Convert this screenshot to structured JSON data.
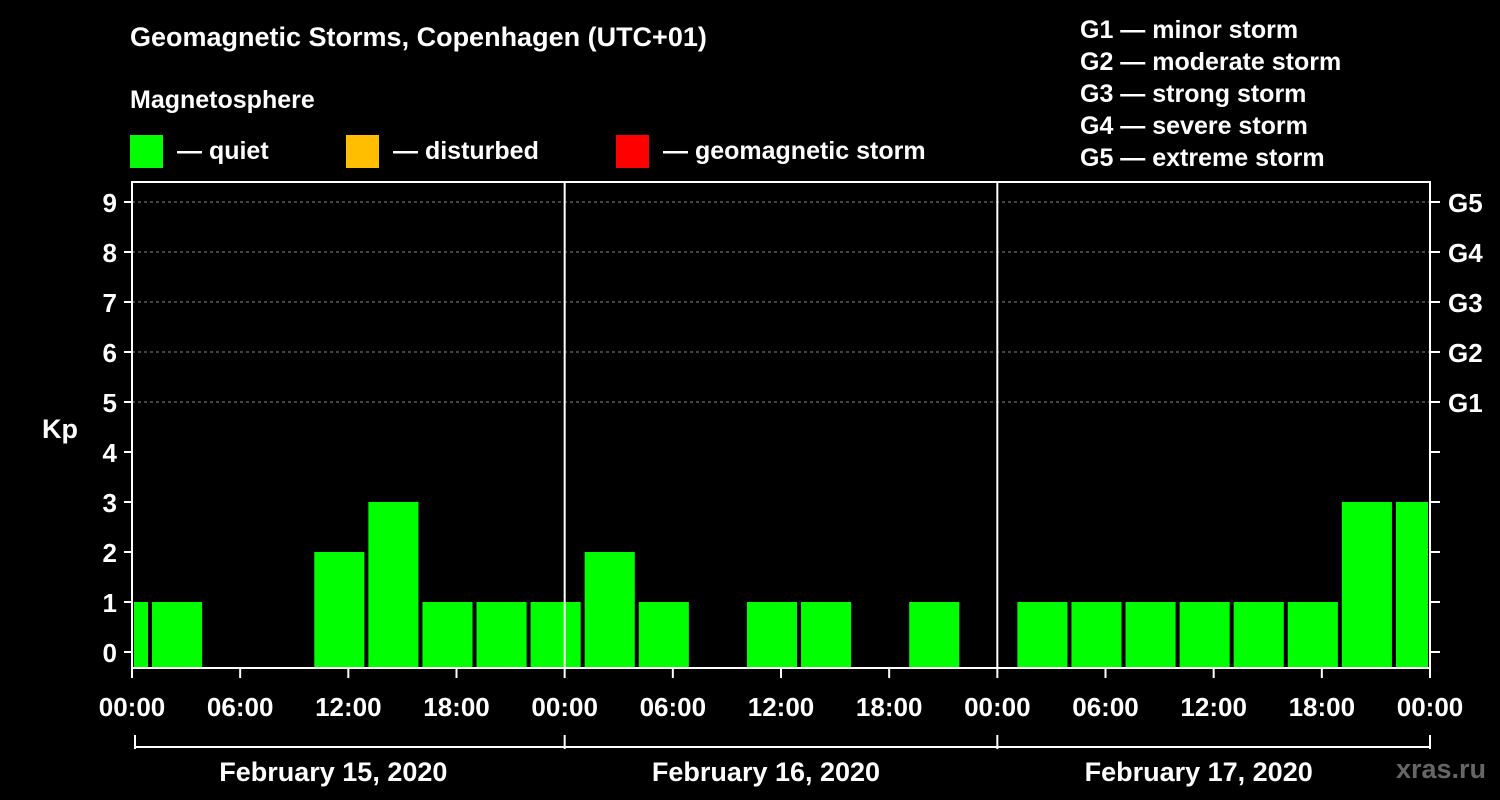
{
  "title": "Geomagnetic Storms, Copenhagen (UTC+01)",
  "magnetosphere_title": "Magnetosphere",
  "legend": [
    {
      "label": "— quiet",
      "color": "#00ff00"
    },
    {
      "label": "— disturbed",
      "color": "#ffbf00"
    },
    {
      "label": "— geomagnetic storm",
      "color": "#ff0000"
    }
  ],
  "g_scale": [
    "G1 — minor storm",
    "G2 — moderate storm",
    "G3 — strong storm",
    "G4 — severe storm",
    "G5 — extreme storm"
  ],
  "watermark": "xras.ru",
  "chart_data": {
    "type": "bar",
    "ylabel": "Kp",
    "ylim": [
      0,
      9
    ],
    "y_ticks": [
      "0",
      "1",
      "2",
      "3",
      "4",
      "5",
      "6",
      "7",
      "8",
      "9"
    ],
    "right_ticks": [
      {
        "kp": 5,
        "label": "G1"
      },
      {
        "kp": 6,
        "label": "G2"
      },
      {
        "kp": 7,
        "label": "G3"
      },
      {
        "kp": 8,
        "label": "G4"
      },
      {
        "kp": 9,
        "label": "G5"
      }
    ],
    "grid": true,
    "x_tick_labels": [
      "00:00",
      "06:00",
      "12:00",
      "18:00",
      "00:00",
      "06:00",
      "12:00",
      "18:00",
      "00:00",
      "06:00",
      "12:00",
      "18:00",
      "00:00"
    ],
    "dates": [
      "February 15, 2020",
      "February 16, 2020",
      "February 17, 2020"
    ],
    "bar_colors": {
      "quiet": "#00ff00"
    },
    "bars": [
      {
        "start_hour": 0.0,
        "kp": 1
      },
      {
        "start_hour": 1.0,
        "kp": 1
      },
      {
        "start_hour": 4.0,
        "kp": 0
      },
      {
        "start_hour": 7.0,
        "kp": 0
      },
      {
        "start_hour": 10.0,
        "kp": 2
      },
      {
        "start_hour": 13.0,
        "kp": 3
      },
      {
        "start_hour": 16.0,
        "kp": 1
      },
      {
        "start_hour": 19.0,
        "kp": 1
      },
      {
        "start_hour": 22.0,
        "kp": 1
      },
      {
        "start_hour": 25.0,
        "kp": 2
      },
      {
        "start_hour": 28.0,
        "kp": 1
      },
      {
        "start_hour": 31.0,
        "kp": 0
      },
      {
        "start_hour": 34.0,
        "kp": 1
      },
      {
        "start_hour": 37.0,
        "kp": 1
      },
      {
        "start_hour": 40.0,
        "kp": 0
      },
      {
        "start_hour": 43.0,
        "kp": 1
      },
      {
        "start_hour": 46.0,
        "kp": 0
      },
      {
        "start_hour": 49.0,
        "kp": 1
      },
      {
        "start_hour": 52.0,
        "kp": 1
      },
      {
        "start_hour": 55.0,
        "kp": 1
      },
      {
        "start_hour": 58.0,
        "kp": 1
      },
      {
        "start_hour": 61.0,
        "kp": 1
      },
      {
        "start_hour": 64.0,
        "kp": 1
      },
      {
        "start_hour": 67.0,
        "kp": 3
      },
      {
        "start_hour": 70.0,
        "kp": 3
      }
    ]
  }
}
